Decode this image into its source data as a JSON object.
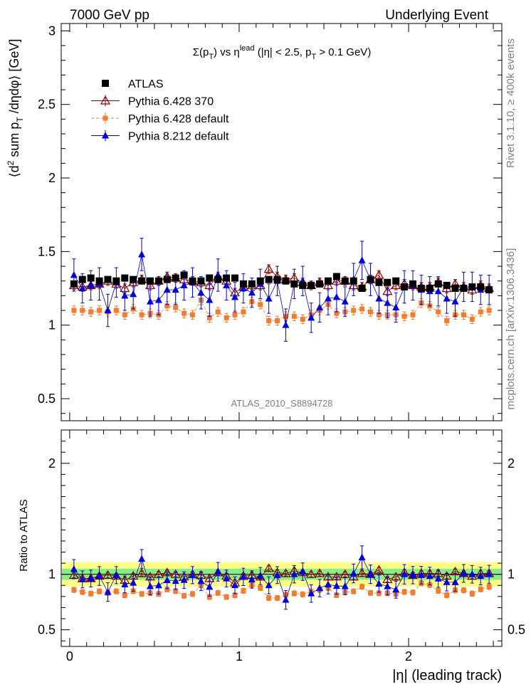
{
  "header": {
    "left": "7000 GeV pp",
    "right": "Underlying Event"
  },
  "side_labels": {
    "top": "Rivet 3.1.10, ≥ 400k events",
    "bottom": "mcplots.cern.ch [arXiv:1306.3436]"
  },
  "chart_data": {
    "type": "scatter",
    "title_parts": {
      "sigma": "Σ(p",
      "sub_t": "T",
      "mid": ") vs η",
      "sup_lead": "lead",
      "tail1": " (|η| < 2.5, p",
      "sub_t2": "T",
      "tail2": " > 0.1 GeV)"
    },
    "analysis_tag": "ATLAS_2010_S8894728",
    "xlabel": "|η| (leading track)",
    "ylabel_parts": {
      "a": "⟨d",
      "sup2": "2",
      "b": " sum p",
      "subT": "T",
      "c": " /dηdφ⟩ [GeV]"
    },
    "ratio_ylabel": "Ratio to ATLAS",
    "xlim": [
      -0.05,
      2.55
    ],
    "ylim": [
      0.35,
      3.05
    ],
    "ratio_ylim": [
      0.35,
      2.3
    ],
    "xticks": [
      0,
      1,
      2
    ],
    "yticks": [
      0.5,
      1,
      1.5,
      2,
      2.5,
      3
    ],
    "yticklabels": [
      "0.5",
      "1",
      "1.5",
      "2",
      "2.5",
      "3"
    ],
    "ratio_yticks": [
      0.5,
      1,
      2
    ],
    "ratio_yticklabels": [
      "0.5",
      "1",
      "2"
    ],
    "legend": [
      {
        "name": "ATLAS",
        "color": "#000000",
        "marker": "square"
      },
      {
        "name": "Pythia 6.428 370",
        "color": "#8b0000",
        "marker": "open-triangle"
      },
      {
        "name": "Pythia 6.428 default",
        "color": "#f07d30",
        "marker": "small-square"
      },
      {
        "name": "Pythia 8.212 default",
        "color": "#0000dd",
        "marker": "triangle"
      }
    ],
    "x": [
      0.025,
      0.075,
      0.125,
      0.175,
      0.225,
      0.275,
      0.325,
      0.375,
      0.425,
      0.475,
      0.525,
      0.575,
      0.625,
      0.675,
      0.725,
      0.775,
      0.825,
      0.875,
      0.925,
      0.975,
      1.025,
      1.075,
      1.125,
      1.175,
      1.225,
      1.275,
      1.325,
      1.375,
      1.425,
      1.475,
      1.525,
      1.575,
      1.625,
      1.675,
      1.725,
      1.775,
      1.825,
      1.875,
      1.925,
      1.975,
      2.025,
      2.075,
      2.125,
      2.175,
      2.225,
      2.275,
      2.325,
      2.375,
      2.425,
      2.475
    ],
    "series": [
      {
        "name": "ATLAS",
        "values": [
          1.28,
          1.31,
          1.32,
          1.3,
          1.31,
          1.3,
          1.32,
          1.31,
          1.3,
          1.3,
          1.3,
          1.31,
          1.32,
          1.34,
          1.3,
          1.3,
          1.32,
          1.31,
          1.32,
          1.32,
          1.28,
          1.28,
          1.3,
          1.31,
          1.31,
          1.3,
          1.28,
          1.27,
          1.27,
          1.28,
          1.3,
          1.33,
          1.3,
          1.3,
          1.25,
          1.31,
          1.29,
          1.29,
          1.3,
          1.26,
          1.28,
          1.25,
          1.25,
          1.28,
          1.27,
          1.25,
          1.25,
          1.26,
          1.26,
          1.24
        ],
        "err": [
          0.02,
          0.02,
          0.02,
          0.02,
          0.02,
          0.02,
          0.02,
          0.02,
          0.02,
          0.02,
          0.02,
          0.02,
          0.02,
          0.02,
          0.02,
          0.02,
          0.02,
          0.02,
          0.02,
          0.02,
          0.02,
          0.02,
          0.02,
          0.02,
          0.02,
          0.02,
          0.02,
          0.02,
          0.02,
          0.02,
          0.02,
          0.02,
          0.02,
          0.02,
          0.02,
          0.02,
          0.02,
          0.02,
          0.02,
          0.02,
          0.02,
          0.02,
          0.02,
          0.02,
          0.02,
          0.02,
          0.02,
          0.02,
          0.02,
          0.02
        ]
      },
      {
        "name": "Pythia 6.428 370",
        "values": [
          1.27,
          1.26,
          1.27,
          1.28,
          1.3,
          1.28,
          1.25,
          1.29,
          1.31,
          1.27,
          1.3,
          1.33,
          1.32,
          1.31,
          1.3,
          1.29,
          1.27,
          1.33,
          1.3,
          1.22,
          1.26,
          1.27,
          1.27,
          1.38,
          1.33,
          1.31,
          1.32,
          1.29,
          1.27,
          1.29,
          1.27,
          1.3,
          1.3,
          1.27,
          1.26,
          1.31,
          1.34,
          1.23,
          1.27,
          1.28,
          1.27,
          1.26,
          1.26,
          1.29,
          1.25,
          1.28,
          1.26,
          1.24,
          1.27,
          1.25
        ],
        "err": [
          0.03,
          0.03,
          0.03,
          0.03,
          0.03,
          0.03,
          0.03,
          0.03,
          0.03,
          0.03,
          0.03,
          0.03,
          0.03,
          0.03,
          0.03,
          0.03,
          0.03,
          0.03,
          0.03,
          0.03,
          0.03,
          0.03,
          0.03,
          0.03,
          0.03,
          0.03,
          0.03,
          0.03,
          0.03,
          0.03,
          0.03,
          0.03,
          0.03,
          0.03,
          0.03,
          0.03,
          0.03,
          0.03,
          0.03,
          0.03,
          0.03,
          0.03,
          0.03,
          0.03,
          0.03,
          0.03,
          0.03,
          0.03,
          0.03,
          0.03
        ]
      },
      {
        "name": "Pythia 6.428 default",
        "values": [
          1.1,
          1.1,
          1.09,
          1.1,
          1.09,
          1.1,
          1.07,
          1.11,
          1.07,
          1.08,
          1.07,
          1.13,
          1.12,
          1.08,
          1.07,
          1.17,
          1.05,
          1.09,
          1.05,
          1.07,
          1.09,
          1.16,
          1.14,
          1.03,
          1.03,
          1.06,
          1.06,
          1.04,
          1.07,
          1.1,
          1.14,
          1.08,
          1.09,
          1.1,
          1.11,
          1.09,
          1.07,
          1.07,
          1.07,
          1.06,
          1.07,
          1.15,
          1.13,
          1.09,
          1.03,
          1.07,
          1.07,
          1.04,
          1.09,
          1.1
        ],
        "err": [
          0.03,
          0.03,
          0.03,
          0.03,
          0.03,
          0.03,
          0.03,
          0.03,
          0.03,
          0.03,
          0.03,
          0.03,
          0.03,
          0.03,
          0.03,
          0.03,
          0.03,
          0.03,
          0.03,
          0.03,
          0.03,
          0.03,
          0.03,
          0.03,
          0.03,
          0.03,
          0.03,
          0.03,
          0.03,
          0.03,
          0.03,
          0.03,
          0.03,
          0.03,
          0.03,
          0.03,
          0.03,
          0.03,
          0.03,
          0.03,
          0.03,
          0.03,
          0.03,
          0.03,
          0.03,
          0.03,
          0.03,
          0.03,
          0.03,
          0.03
        ]
      },
      {
        "name": "Pythia 8.212 default",
        "values": [
          1.34,
          1.25,
          1.27,
          1.28,
          1.1,
          1.29,
          1.2,
          1.21,
          1.48,
          1.16,
          1.17,
          1.24,
          1.24,
          1.27,
          1.29,
          1.22,
          1.17,
          1.34,
          1.27,
          1.19,
          1.25,
          1.22,
          1.28,
          1.18,
          1.3,
          1.0,
          1.28,
          1.3,
          1.05,
          1.12,
          1.18,
          1.19,
          1.16,
          1.31,
          1.44,
          1.31,
          1.18,
          1.15,
          1.12,
          1.26,
          1.27,
          1.24,
          1.23,
          1.23,
          1.18,
          1.16,
          1.26,
          1.26,
          1.24,
          1.24
        ],
        "err": [
          0.11,
          0.1,
          0.1,
          0.11,
          0.11,
          0.1,
          0.1,
          0.1,
          0.11,
          0.1,
          0.1,
          0.1,
          0.1,
          0.1,
          0.1,
          0.11,
          0.11,
          0.11,
          0.1,
          0.1,
          0.1,
          0.1,
          0.1,
          0.1,
          0.1,
          0.11,
          0.1,
          0.1,
          0.1,
          0.1,
          0.11,
          0.1,
          0.1,
          0.11,
          0.13,
          0.11,
          0.1,
          0.1,
          0.1,
          0.11,
          0.1,
          0.1,
          0.1,
          0.1,
          0.1,
          0.1,
          0.1,
          0.1,
          0.1,
          0.1
        ]
      }
    ]
  }
}
